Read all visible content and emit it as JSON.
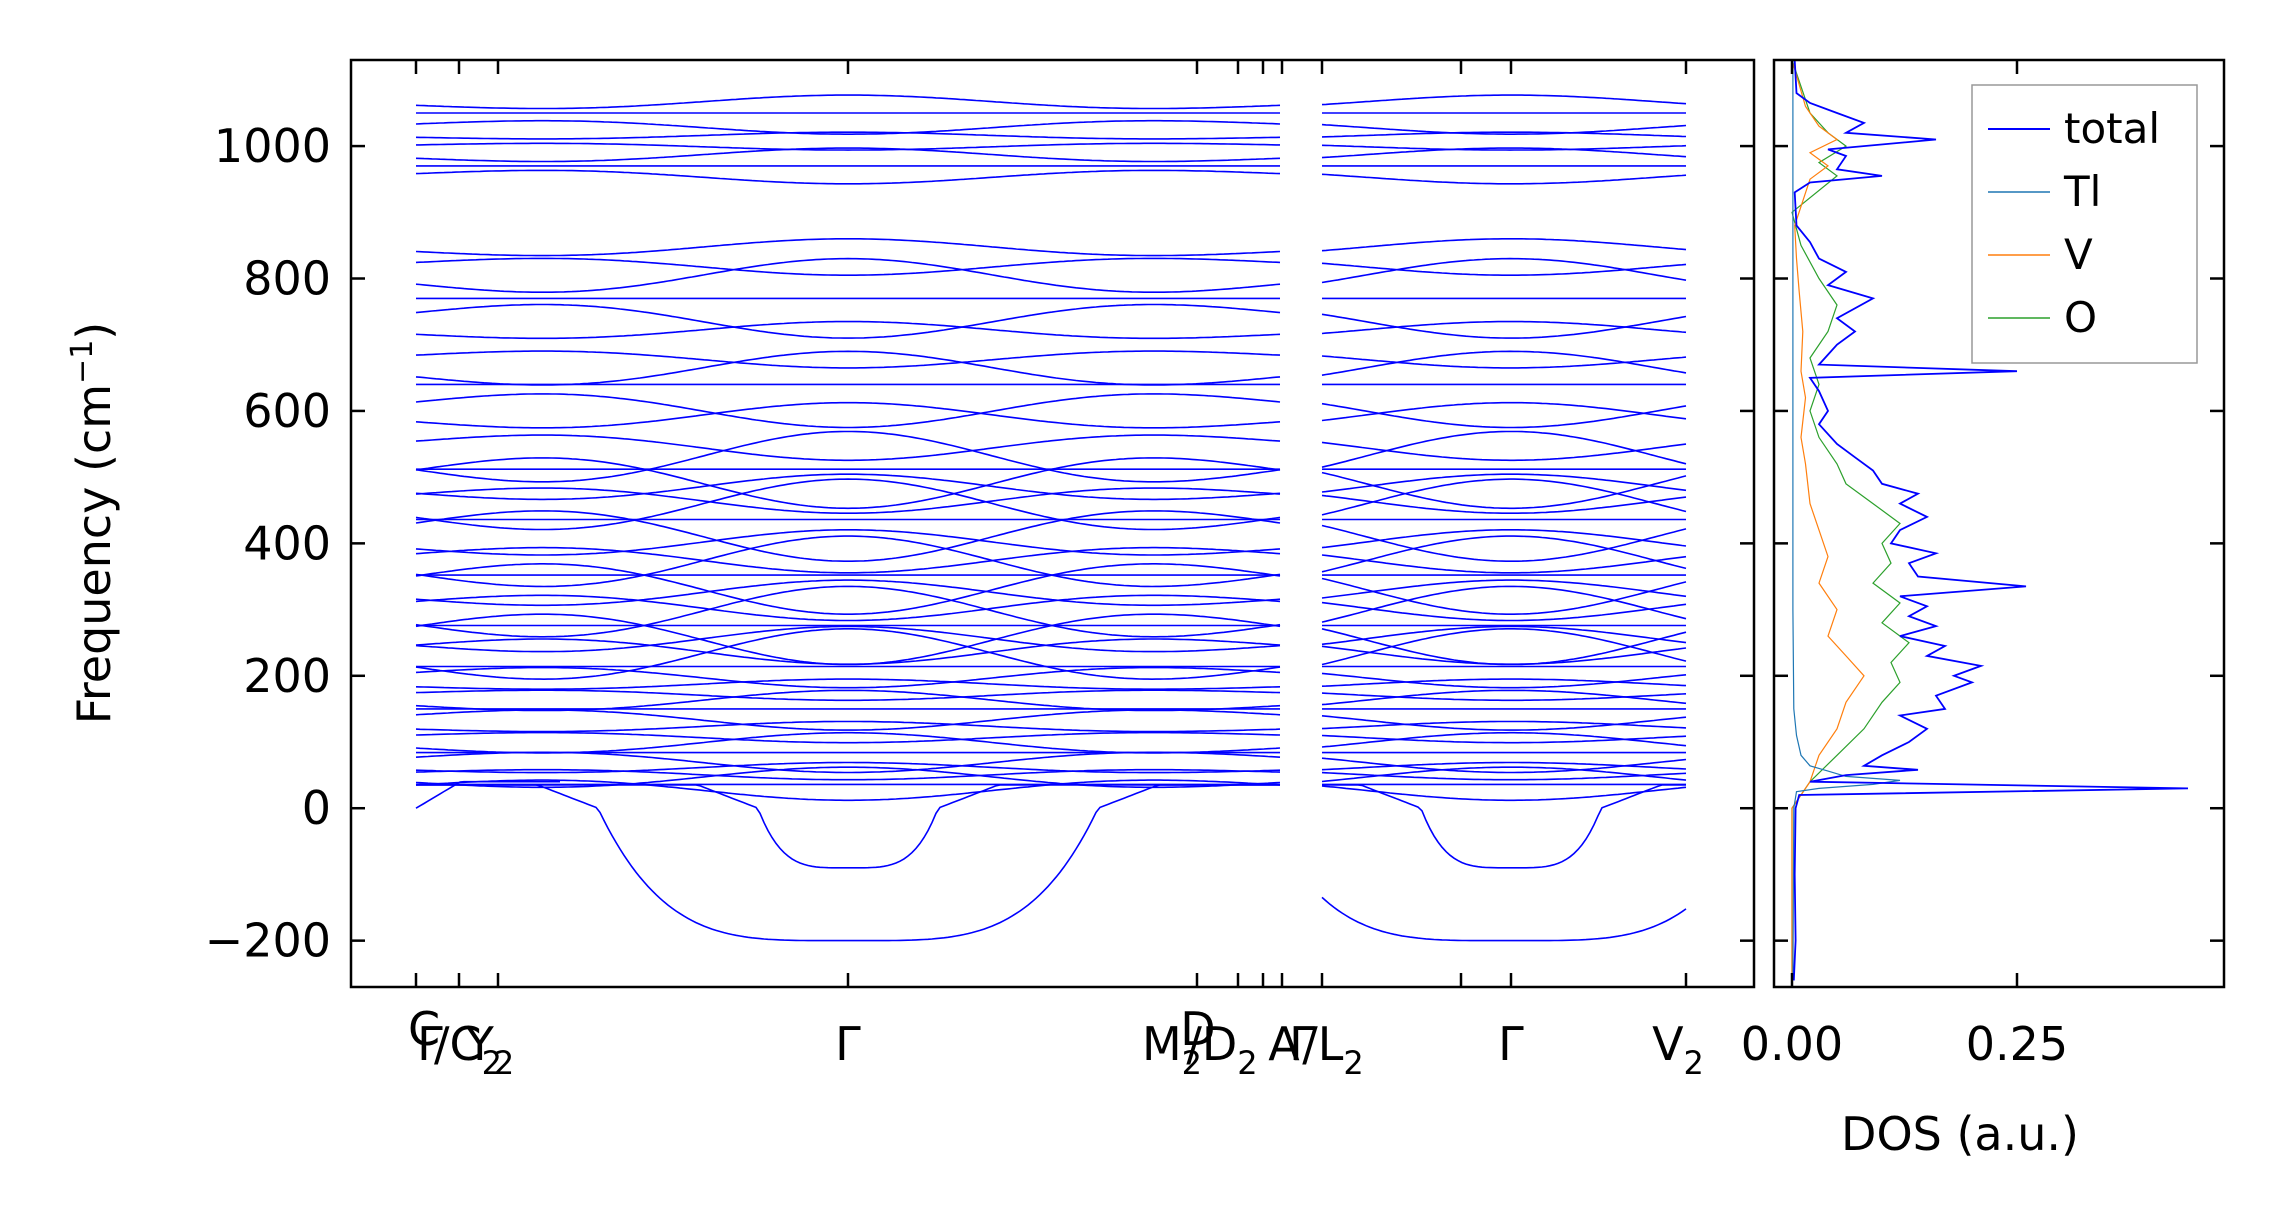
{
  "chart_data": [
    {
      "type": "line",
      "panel": "phonon band structure",
      "ylabel": "Frequency (cm",
      "ylabel_sup": "−1",
      "ylabel_close": ")",
      "ylim": [
        -270,
        1130
      ],
      "y_ticks": [
        -200,
        0,
        200,
        400,
        600,
        800,
        1000
      ],
      "y_tick_labels": [
        "−200",
        "0",
        "200",
        "400",
        "600",
        "800",
        "1000"
      ],
      "x_tick_labels": [
        {
          "text": "Γ",
          "sub": ""
        },
        {
          "text": "C",
          "sub": ""
        },
        {
          "text": "/C",
          "sub": "2"
        },
        {
          "text": "Y",
          "sub": "2"
        },
        {
          "text": "Γ",
          "sub": ""
        },
        {
          "text": "M",
          "sub": "2"
        },
        {
          "text": "D",
          "sub": ""
        },
        {
          "text": "/D",
          "sub": "2"
        },
        {
          "text": "A",
          "sub": ""
        },
        {
          "text": "Γ",
          "sub": ""
        },
        {
          "text": "/L",
          "sub": "2"
        },
        {
          "text": "Γ",
          "sub": ""
        },
        {
          "text": "V",
          "sub": "2"
        }
      ],
      "line_color": "#0000ff",
      "flat_bands_cm1": [
        30,
        36,
        44,
        52,
        60,
        72,
        84,
        96,
        108,
        122,
        136,
        150,
        160,
        172,
        186,
        200,
        214,
        226,
        240,
        252,
        262,
        276,
        290,
        306,
        322,
        338,
        352,
        366,
        378,
        398,
        418,
        436,
        452,
        468,
        482,
        498,
        512,
        524,
        548,
        590,
        605,
        640,
        660,
        680,
        720,
        740,
        770,
        800,
        820,
        845,
        955,
        970,
        985,
        1000,
        1015,
        1030,
        1050,
        1065
      ],
      "soft_mode_min_cm1": [
        -200,
        -90
      ],
      "series": [
        {
          "name": "",
          "values": []
        }
      ]
    },
    {
      "type": "line",
      "panel": "density of states",
      "xlabel": "DOS (a.u.)",
      "x_ticks": [
        0.0,
        0.25
      ],
      "x_tick_labels": [
        "0.00",
        "0.25"
      ],
      "xlim": [
        -0.02,
        0.48
      ],
      "ylim": [
        -270,
        1130
      ],
      "legend_position": "top-right",
      "series": [
        {
          "name": "total",
          "color": "#0000ff",
          "points": [
            [
              0.002,
              -260
            ],
            [
              0.004,
              -200
            ],
            [
              0.003,
              -100
            ],
            [
              0.004,
              0
            ],
            [
              0.008,
              20
            ],
            [
              0.44,
              30
            ],
            [
              0.02,
              40
            ],
            [
              0.06,
              50
            ],
            [
              0.14,
              58
            ],
            [
              0.08,
              64
            ],
            [
              0.1,
              80
            ],
            [
              0.13,
              100
            ],
            [
              0.15,
              120
            ],
            [
              0.12,
              140
            ],
            [
              0.17,
              150
            ],
            [
              0.16,
              170
            ],
            [
              0.2,
              190
            ],
            [
              0.18,
              200
            ],
            [
              0.21,
              215
            ],
            [
              0.15,
              230
            ],
            [
              0.17,
              245
            ],
            [
              0.12,
              260
            ],
            [
              0.16,
              275
            ],
            [
              0.13,
              290
            ],
            [
              0.15,
              305
            ],
            [
              0.12,
              320
            ],
            [
              0.26,
              335
            ],
            [
              0.14,
              350
            ],
            [
              0.13,
              370
            ],
            [
              0.16,
              385
            ],
            [
              0.11,
              400
            ],
            [
              0.12,
              420
            ],
            [
              0.15,
              440
            ],
            [
              0.12,
              460
            ],
            [
              0.14,
              475
            ],
            [
              0.1,
              490
            ],
            [
              0.09,
              510
            ],
            [
              0.07,
              530
            ],
            [
              0.05,
              550
            ],
            [
              0.03,
              580
            ],
            [
              0.04,
              600
            ],
            [
              0.03,
              630
            ],
            [
              0.02,
              650
            ],
            [
              0.25,
              660
            ],
            [
              0.03,
              670
            ],
            [
              0.05,
              700
            ],
            [
              0.07,
              720
            ],
            [
              0.05,
              740
            ],
            [
              0.09,
              770
            ],
            [
              0.04,
              790
            ],
            [
              0.06,
              810
            ],
            [
              0.03,
              830
            ],
            [
              0.02,
              855
            ],
            [
              0.005,
              880
            ],
            [
              0.003,
              930
            ],
            [
              0.02,
              945
            ],
            [
              0.1,
              955
            ],
            [
              0.05,
              965
            ],
            [
              0.06,
              985
            ],
            [
              0.04,
              995
            ],
            [
              0.16,
              1010
            ],
            [
              0.06,
              1020
            ],
            [
              0.08,
              1035
            ],
            [
              0.05,
              1050
            ],
            [
              0.02,
              1065
            ],
            [
              0.005,
              1080
            ],
            [
              0.003,
              1130
            ]
          ]
        },
        {
          "name": "Tl",
          "color": "#1f77b4",
          "points": [
            [
              0.001,
              -260
            ],
            [
              0.002,
              0
            ],
            [
              0.005,
              25
            ],
            [
              0.03,
              30
            ],
            [
              0.09,
              36
            ],
            [
              0.12,
              42
            ],
            [
              0.06,
              48
            ],
            [
              0.04,
              56
            ],
            [
              0.02,
              64
            ],
            [
              0.01,
              80
            ],
            [
              0.005,
              110
            ],
            [
              0.002,
              150
            ],
            [
              0.001,
              300
            ],
            [
              0.001,
              1130
            ]
          ]
        },
        {
          "name": "V",
          "color": "#ff7f0e",
          "points": [
            [
              0.0,
              -260
            ],
            [
              0.0,
              0
            ],
            [
              0.02,
              40
            ],
            [
              0.03,
              80
            ],
            [
              0.05,
              120
            ],
            [
              0.06,
              160
            ],
            [
              0.08,
              200
            ],
            [
              0.06,
              230
            ],
            [
              0.04,
              260
            ],
            [
              0.05,
              300
            ],
            [
              0.03,
              340
            ],
            [
              0.04,
              380
            ],
            [
              0.03,
              420
            ],
            [
              0.02,
              460
            ],
            [
              0.015,
              520
            ],
            [
              0.01,
              560
            ],
            [
              0.015,
              620
            ],
            [
              0.01,
              660
            ],
            [
              0.012,
              720
            ],
            [
              0.008,
              780
            ],
            [
              0.005,
              830
            ],
            [
              0.003,
              880
            ],
            [
              0.02,
              950
            ],
            [
              0.04,
              970
            ],
            [
              0.02,
              990
            ],
            [
              0.05,
              1010
            ],
            [
              0.03,
              1030
            ],
            [
              0.015,
              1060
            ],
            [
              0.0,
              1130
            ]
          ]
        },
        {
          "name": "O",
          "color": "#2ca02c",
          "points": [
            [
              0.0,
              -260
            ],
            [
              0.0,
              0
            ],
            [
              0.02,
              40
            ],
            [
              0.05,
              80
            ],
            [
              0.08,
              120
            ],
            [
              0.1,
              160
            ],
            [
              0.12,
              190
            ],
            [
              0.11,
              220
            ],
            [
              0.13,
              250
            ],
            [
              0.1,
              280
            ],
            [
              0.12,
              310
            ],
            [
              0.09,
              340
            ],
            [
              0.11,
              370
            ],
            [
              0.1,
              400
            ],
            [
              0.12,
              430
            ],
            [
              0.09,
              460
            ],
            [
              0.06,
              490
            ],
            [
              0.05,
              520
            ],
            [
              0.03,
              560
            ],
            [
              0.02,
              600
            ],
            [
              0.03,
              640
            ],
            [
              0.02,
              680
            ],
            [
              0.04,
              720
            ],
            [
              0.05,
              760
            ],
            [
              0.03,
              800
            ],
            [
              0.01,
              850
            ],
            [
              0.0,
              900
            ],
            [
              0.05,
              955
            ],
            [
              0.03,
              975
            ],
            [
              0.06,
              1000
            ],
            [
              0.04,
              1020
            ],
            [
              0.02,
              1050
            ],
            [
              0.0,
              1130
            ]
          ]
        }
      ]
    }
  ]
}
